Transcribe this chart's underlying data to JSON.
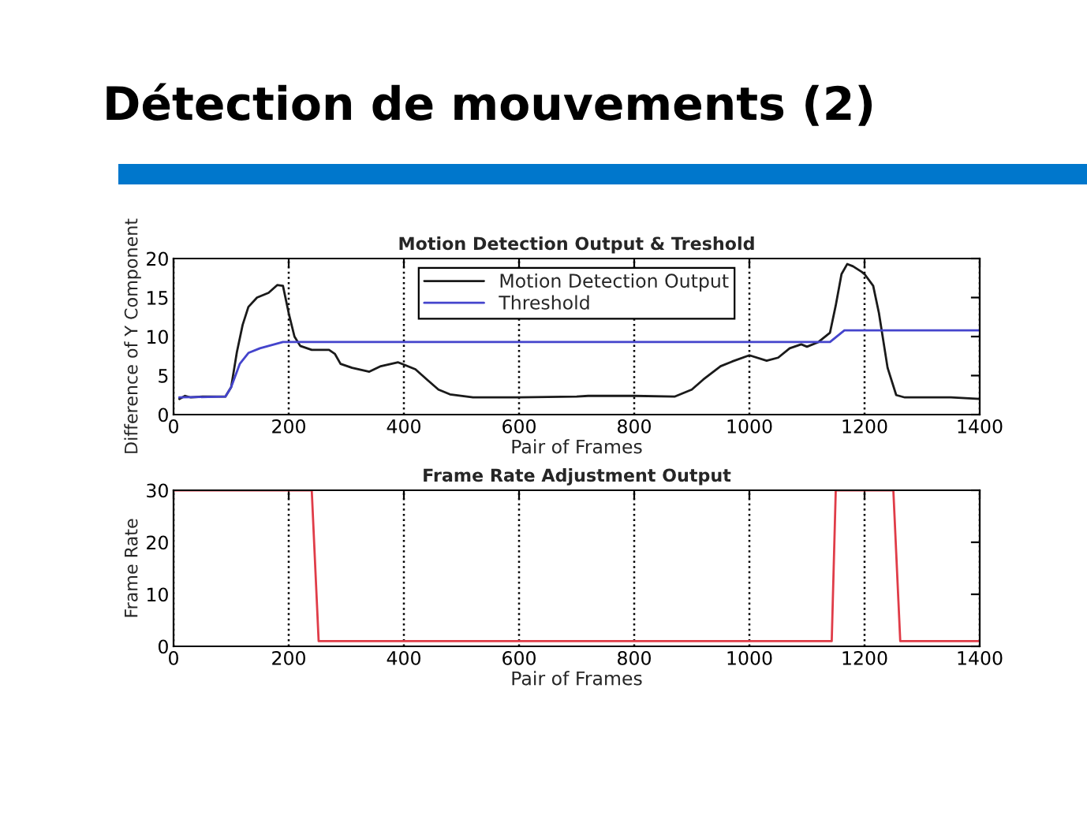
{
  "chart_data": [
    {
      "type": "line",
      "title": "Motion Detection Output & Treshold",
      "xlabel": "Pair of Frames",
      "ylabel": "Difference of Y Component",
      "annotations": [
        "Détection de mouvements (2)"
      ],
      "series": [
        {
          "name": "Motion Detection Output",
          "color": "#1a1a1a",
          "x": [
            10,
            20,
            30,
            50,
            90,
            100,
            110,
            120,
            130,
            145,
            165,
            180,
            190,
            200,
            210,
            220,
            240,
            270,
            280,
            290,
            310,
            340,
            360,
            390,
            420,
            440,
            460,
            480,
            520,
            600,
            700,
            720,
            800,
            870,
            900,
            920,
            950,
            970,
            1000,
            1030,
            1050,
            1070,
            1090,
            1100,
            1120,
            1140,
            1150,
            1160,
            1170,
            1180,
            1195,
            1200,
            1215,
            1225,
            1240,
            1255,
            1270,
            1350,
            1400
          ],
          "values": [
            2.0,
            2.4,
            2.2,
            2.3,
            2.3,
            3.5,
            8,
            11.5,
            13.8,
            15,
            15.6,
            16.6,
            16.5,
            13,
            10,
            8.8,
            8.3,
            8.3,
            7.8,
            6.5,
            6,
            5.5,
            6.2,
            6.7,
            5.8,
            4.5,
            3.2,
            2.6,
            2.2,
            2.2,
            2.3,
            2.4,
            2.4,
            2.3,
            3.2,
            4.5,
            6.2,
            6.8,
            7.6,
            6.9,
            7.3,
            8.5,
            9,
            8.7,
            9.3,
            10.5,
            14,
            18,
            19.3,
            19,
            18.3,
            18,
            16.5,
            13,
            6,
            2.5,
            2.2,
            2.2,
            2.0
          ]
        },
        {
          "name": "Threshold",
          "color": "#4444cc",
          "x": [
            10,
            90,
            100,
            115,
            130,
            150,
            170,
            190,
            1140,
            1165,
            1400
          ],
          "values": [
            2.2,
            2.3,
            3.5,
            6.5,
            7.9,
            8.5,
            8.9,
            9.3,
            9.3,
            10.8,
            10.8
          ]
        }
      ],
      "xlim": [
        0,
        1400
      ],
      "xticks": [
        0,
        200,
        400,
        600,
        800,
        1000,
        1200,
        1400
      ],
      "ylim": [
        0,
        20
      ],
      "yticks": [
        0,
        5,
        10,
        15,
        20
      ],
      "grid": "x",
      "legend": "top"
    },
    {
      "type": "line",
      "title": "Frame Rate Adjustment Output",
      "xlabel": "Pair of Frames",
      "ylabel": "Frame Rate",
      "series": [
        {
          "color": "#e03c48",
          "x": [
            0,
            240,
            252,
            1143,
            1150,
            1250,
            1262,
            1400
          ],
          "values": [
            30,
            30,
            1,
            1,
            30,
            30,
            1,
            1
          ]
        }
      ],
      "xlim": [
        0,
        1400
      ],
      "xticks": [
        0,
        200,
        400,
        600,
        800,
        1000,
        1200,
        1400
      ],
      "ylim": [
        0,
        30
      ],
      "yticks": [
        0,
        10,
        20,
        30
      ],
      "grid": "x"
    }
  ]
}
